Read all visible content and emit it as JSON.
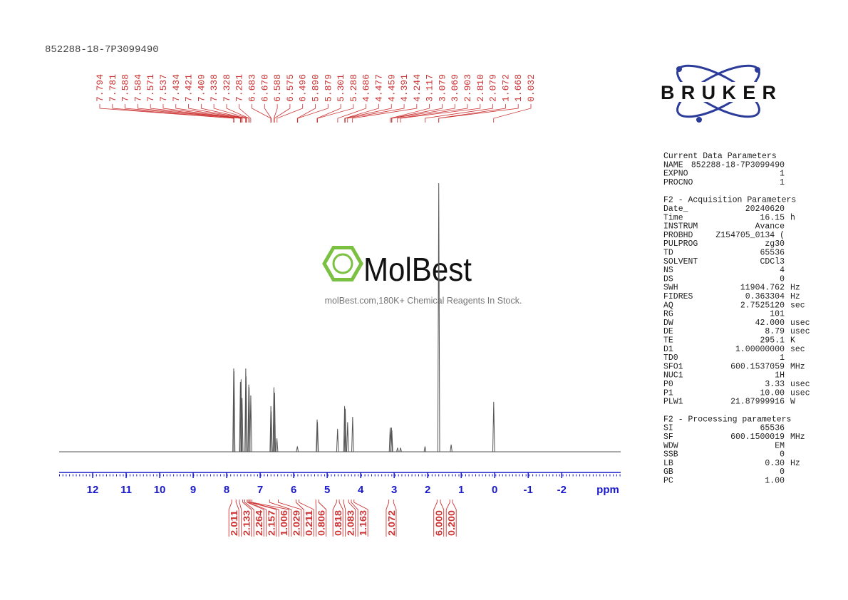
{
  "sample_id": "852288-18-7P3099490",
  "chart_data": {
    "type": "nmr",
    "x_label": "ppm",
    "xlim": [
      13,
      -3.76
    ],
    "xticks": [
      12,
      11,
      10,
      9,
      8,
      7,
      6,
      5,
      4,
      3,
      2,
      1,
      0,
      -1,
      -2
    ],
    "ylim": [
      0,
      100
    ],
    "color": "#555555",
    "axis_color": "#1a1acc",
    "label_color": "#cc3333",
    "peaks": {
      "x": [
        7.79,
        7.78,
        7.59,
        7.57,
        7.54,
        7.43,
        7.42,
        7.34,
        7.33,
        7.28,
        6.68,
        6.67,
        6.59,
        6.57,
        6.5,
        5.89,
        5.3,
        5.29,
        4.69,
        4.48,
        4.46,
        4.39,
        4.24,
        3.12,
        3.08,
        3.07,
        2.9,
        2.81,
        2.08,
        1.67,
        1.3,
        0.03
      ],
      "values": [
        31,
        30,
        26,
        27,
        20,
        31,
        28,
        25,
        24,
        21,
        17,
        15,
        24,
        22,
        5,
        2,
        12,
        11,
        8.5,
        17,
        16,
        11,
        13,
        9,
        9,
        8,
        1.5,
        1.5,
        2,
        100,
        2.7,
        18.6
      ]
    },
    "peak_labels": {
      "x": [
        7.794,
        7.781,
        7.588,
        7.584,
        7.571,
        7.537,
        7.434,
        7.421,
        7.409,
        7.338,
        7.328,
        7.281,
        6.683,
        6.67,
        6.588,
        6.575,
        6.496,
        5.89,
        5.879,
        5.301,
        5.288,
        4.686,
        4.477,
        4.459,
        4.391,
        4.244,
        3.117,
        3.079,
        3.069,
        2.903,
        2.81,
        2.079,
        1.672,
        1.668,
        0.032
      ],
      "labels": [
        "7.794",
        "7.781",
        "7.588",
        "7.584",
        "7.571",
        "7.537",
        "7.434",
        "7.421",
        "7.409",
        "7.338",
        "7.328",
        "7.281",
        "6.683",
        "6.670",
        "6.588",
        "6.575",
        "6.496",
        "5.890",
        "5.879",
        "5.301",
        "5.288",
        "4.686",
        "4.477",
        "4.459",
        "4.391",
        "4.244",
        "3.117",
        "3.079",
        "3.069",
        "2.903",
        "2.810",
        "2.079",
        "1.672",
        "1.668",
        "0.032"
      ]
    },
    "integrals": {
      "values": [
        2.011,
        2.133,
        2.264,
        2.157,
        1.006,
        2.029,
        0.211,
        0.806,
        0.818,
        2.083,
        1.163,
        2.072,
        6,
        0.2
      ],
      "value_labels": [
        "2.011",
        "2.133",
        "2.264",
        "2.157",
        "1.006",
        "2.029",
        "0.211",
        "0.806",
        "0.818",
        "2.083",
        "1.163",
        "2.072",
        "6.000",
        "0.200"
      ],
      "ranges": [
        [
          7.85,
          7.72
        ],
        [
          7.62,
          7.52
        ],
        [
          7.46,
          7.39
        ],
        [
          7.36,
          7.31
        ],
        [
          7.3,
          7.25
        ],
        [
          6.72,
          6.46
        ],
        [
          5.93,
          5.84
        ],
        [
          5.34,
          5.25
        ],
        [
          4.72,
          4.64
        ],
        [
          4.51,
          4.36
        ],
        [
          4.28,
          4.2
        ],
        [
          3.16,
          3.02
        ],
        [
          1.72,
          1.62
        ],
        [
          1.34,
          1.26
        ]
      ]
    }
  },
  "watermark": {
    "name": "MolBest",
    "tagline": "molBest.com,180K+ Chemical Reagents In Stock."
  },
  "logo": "BRUKER",
  "parameters": [
    {
      "title": "Current Data Parameters",
      "rows": [
        [
          "NAME",
          "852288-18-7P3099490"
        ],
        [
          "EXPNO",
          "1"
        ],
        [
          "PROCNO",
          "1"
        ]
      ]
    },
    {
      "title": "F2 - Acquisition Parameters",
      "rows": [
        [
          "Date_",
          "20240620"
        ],
        [
          "Time",
          "16.15",
          "h"
        ],
        [
          "INSTRUM",
          "Avance"
        ],
        [
          "PROBHD",
          "Z154705_0134 ("
        ],
        [
          "PULPROG",
          "zg30"
        ],
        [
          "TD",
          "65536"
        ],
        [
          "SOLVENT",
          "CDCl3"
        ],
        [
          "NS",
          "4"
        ],
        [
          "DS",
          "0"
        ],
        [
          "SWH",
          "11904.762",
          "Hz"
        ],
        [
          "FIDRES",
          "0.363304",
          "Hz"
        ],
        [
          "AQ",
          "2.7525120",
          "sec"
        ],
        [
          "RG",
          "101"
        ],
        [
          "DW",
          "42.000",
          "usec"
        ],
        [
          "DE",
          "8.79",
          "usec"
        ],
        [
          "TE",
          "295.1",
          "K"
        ],
        [
          "D1",
          "1.00000000",
          "sec"
        ],
        [
          "TD0",
          "1"
        ],
        [
          "SFO1",
          "600.1537059",
          "MHz"
        ],
        [
          "NUC1",
          "1H"
        ],
        [
          "P0",
          "3.33",
          "usec"
        ],
        [
          "P1",
          "10.00",
          "usec"
        ],
        [
          "PLW1",
          "21.87999916",
          "W"
        ]
      ]
    },
    {
      "title": "F2 - Processing parameters",
      "rows": [
        [
          "SI",
          "65536"
        ],
        [
          "SF",
          "600.1500019",
          "MHz"
        ],
        [
          "WDW",
          "EM"
        ],
        [
          "SSB",
          "0"
        ],
        [
          "LB",
          "0.30",
          "Hz"
        ],
        [
          "GB",
          "0"
        ],
        [
          "PC",
          "1.00"
        ]
      ]
    }
  ]
}
